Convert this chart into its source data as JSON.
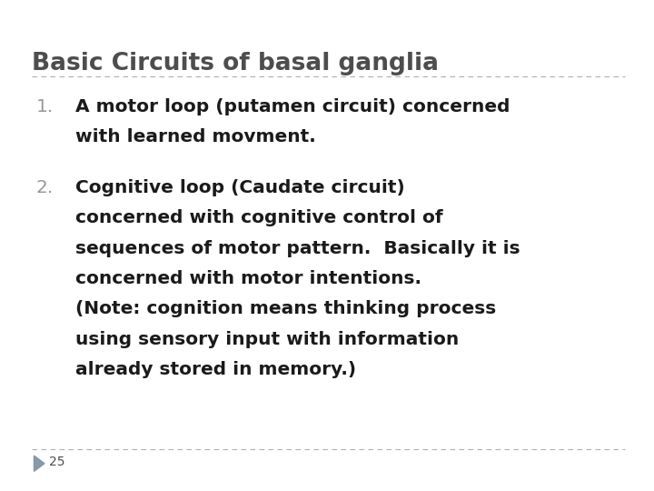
{
  "title": "Basic Circuits of basal ganglia",
  "title_color": "#4d4d4d",
  "title_fontsize": 19,
  "background_color": "#ffffff",
  "divider_color": "#b0b0b0",
  "number_color": "#999999",
  "body_color": "#1a1a1a",
  "body_fontsize": 14.5,
  "item1_number": "1.",
  "item1_lines": [
    "A motor loop (putamen circuit) concerned",
    "with learned movment."
  ],
  "item2_number": "2.",
  "item2_lines": [
    "Cognitive loop (Caudate circuit)",
    "concerned with cognitive control of",
    "sequences of motor pattern.  Basically it is",
    "concerned with motor intentions.",
    "(Note: cognition means thinking process",
    "using sensory input with information",
    "already stored in memory.)"
  ],
  "footer_number": "25",
  "footer_color": "#4d4d4d",
  "footer_fontsize": 10,
  "arrow_color": "#8899aa"
}
